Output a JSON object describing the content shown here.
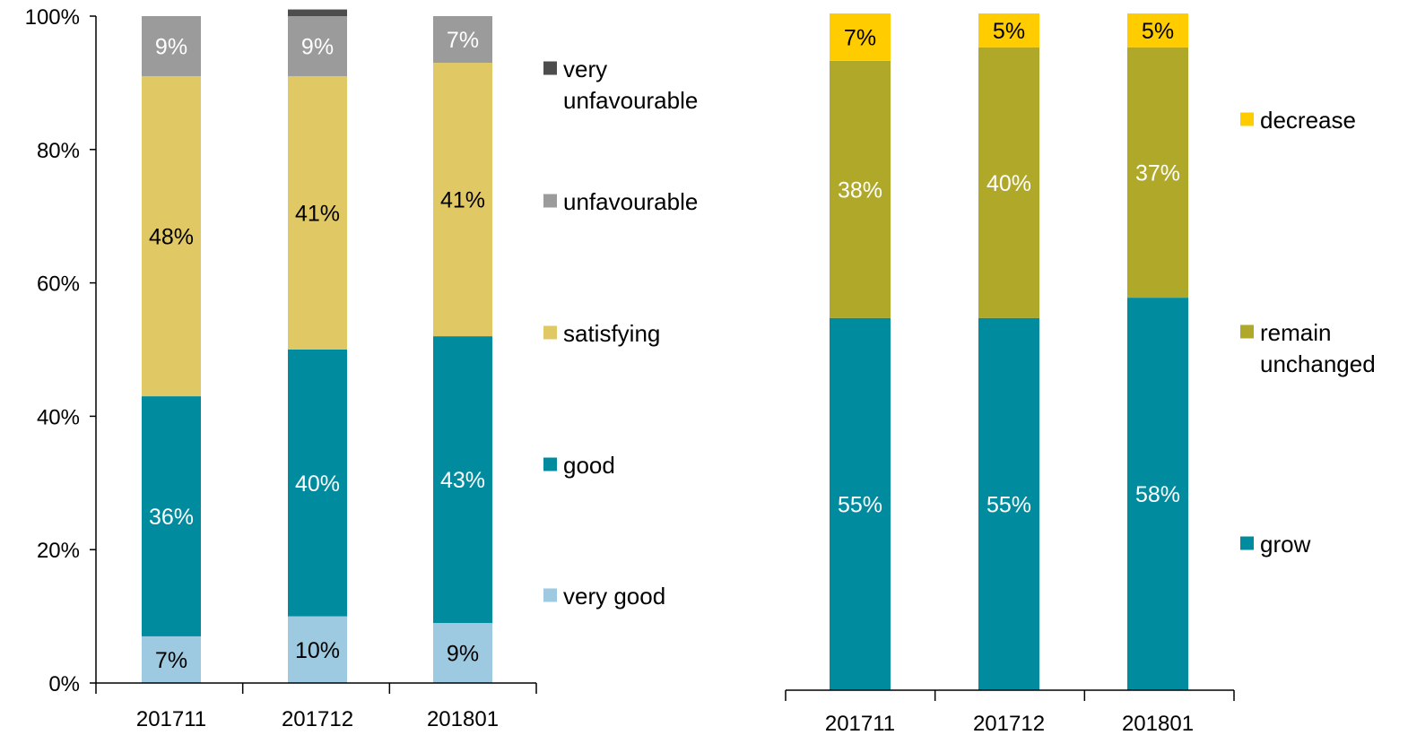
{
  "chart_data": [
    {
      "type": "bar",
      "stacked": true,
      "percent": true,
      "categories": [
        "201711",
        "201712",
        "201801"
      ],
      "ylim": [
        0,
        100
      ],
      "yticks": [
        "0%",
        "20%",
        "40%",
        "60%",
        "80%",
        "100%"
      ],
      "legend_position": "right",
      "series": [
        {
          "name": "very good",
          "color": "#9ecae1",
          "values": [
            7,
            10,
            9
          ],
          "labels": [
            "7%",
            "10%",
            "9%"
          ],
          "label_color": "#000000"
        },
        {
          "name": "good",
          "color": "#008c9e",
          "values": [
            36,
            40,
            43
          ],
          "labels": [
            "36%",
            "40%",
            "43%"
          ],
          "label_color": "#ffffff"
        },
        {
          "name": "satisfying",
          "color": "#e0c865",
          "values": [
            48,
            41,
            41
          ],
          "labels": [
            "48%",
            "41%",
            "41%"
          ],
          "label_color": "#000000"
        },
        {
          "name": "unfavourable",
          "color": "#9b9b9b",
          "values": [
            9,
            9,
            7
          ],
          "labels": [
            "9%",
            "9%",
            "7%"
          ],
          "label_color": "#ffffff"
        },
        {
          "name": "very unfavourable",
          "color": "#4d4d4d",
          "values": [
            0,
            1,
            0
          ],
          "labels": [
            "",
            "",
            ""
          ],
          "label_color": "#ffffff"
        }
      ]
    },
    {
      "type": "bar",
      "stacked": true,
      "percent": true,
      "categories": [
        "201711",
        "201712",
        "201801"
      ],
      "ylim": [
        0,
        100
      ],
      "legend_position": "right",
      "series": [
        {
          "name": "grow",
          "color": "#008c9e",
          "values": [
            55,
            55,
            58
          ],
          "labels": [
            "55%",
            "55%",
            "58%"
          ],
          "label_color": "#ffffff"
        },
        {
          "name": "remain unchanged",
          "color": "#b0a829",
          "values": [
            38,
            40,
            37
          ],
          "labels": [
            "38%",
            "40%",
            "37%"
          ],
          "label_color": "#ffffff"
        },
        {
          "name": "decrease",
          "color": "#ffcc00",
          "values": [
            7,
            5,
            5
          ],
          "labels": [
            "7%",
            "5%",
            "5%"
          ],
          "label_color": "#000000"
        }
      ]
    }
  ]
}
